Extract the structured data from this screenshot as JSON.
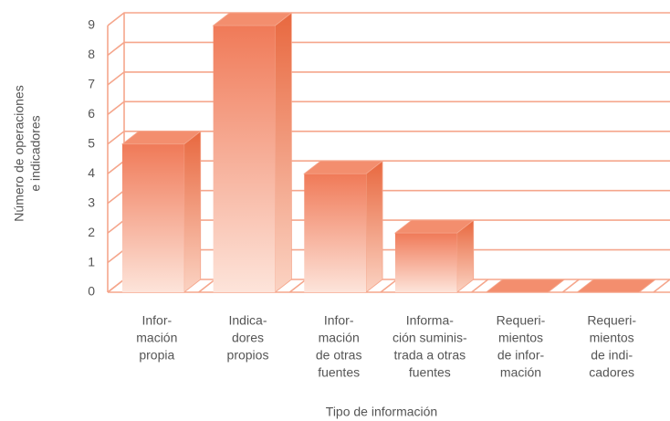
{
  "chart_data": {
    "type": "bar3d",
    "ylabel": [
      "Número de operaciones",
      "e indicadores"
    ],
    "xlabel": "Tipo de información",
    "categories": [
      [
        "Infor-",
        "mación",
        "propia"
      ],
      [
        "Indica-",
        "dores",
        "propios"
      ],
      [
        "Infor-",
        "mación",
        "de otras",
        "fuentes"
      ],
      [
        "Informa-",
        "ción suminis-",
        "trada a otras",
        "fuentes"
      ],
      [
        "Requeri-",
        "mientos",
        "de infor-",
        "mación"
      ],
      [
        "Requeri-",
        "mientos",
        "de indi-",
        "cadores"
      ]
    ],
    "values": [
      5,
      9,
      4,
      2,
      0,
      0
    ],
    "color": "#f07a58",
    "ylim": [
      0,
      9
    ],
    "yticks": [
      0,
      1,
      2,
      3,
      4,
      5,
      6,
      7,
      8,
      9
    ],
    "grid": true
  }
}
